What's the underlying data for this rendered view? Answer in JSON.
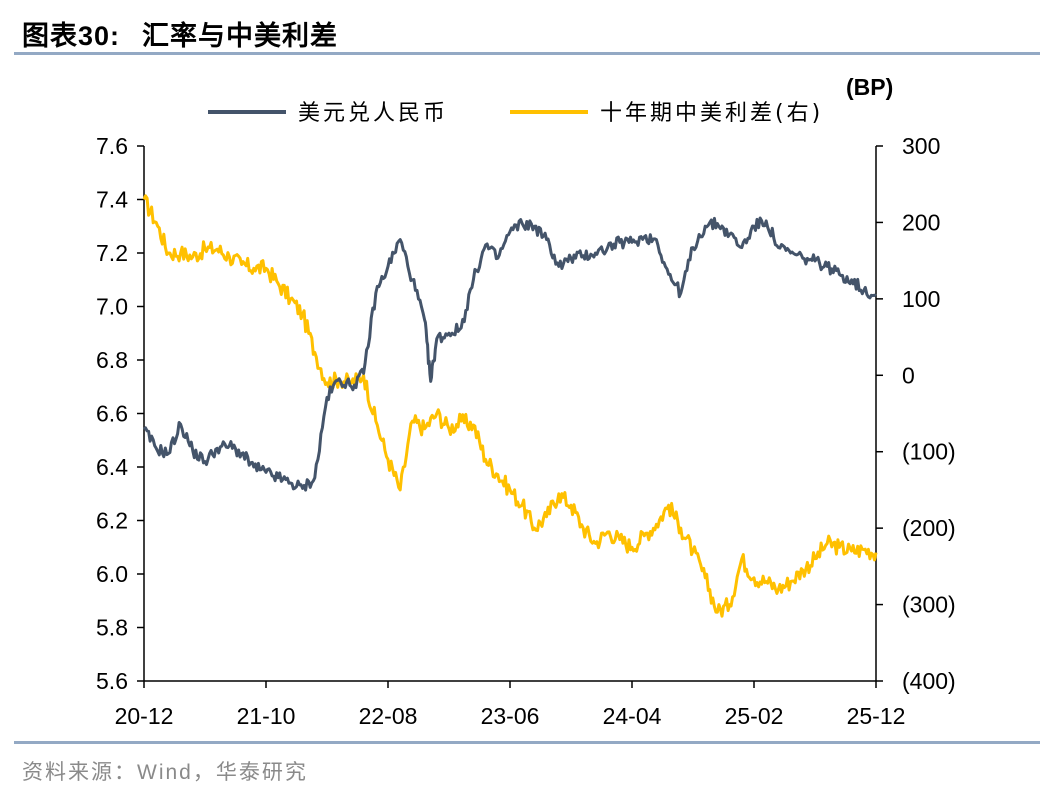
{
  "figure": {
    "label": "图表30:",
    "title": "汇率与中美利差",
    "source": "资料来源：Wind，华泰研究"
  },
  "colors": {
    "usdcny": "#44546a",
    "spread": "#ffc000",
    "rule": "#93a9c4"
  },
  "chart_data": {
    "type": "line",
    "title": "汇率与中美利差",
    "x_ticks": [
      "20-12",
      "21-10",
      "22-08",
      "23-06",
      "24-04",
      "25-02",
      "25-12"
    ],
    "x_tick_index": [
      0,
      10,
      20,
      30,
      40,
      50,
      60
    ],
    "y_left": {
      "min": 5.6,
      "max": 7.6,
      "ticks": [
        "7.6",
        "7.4",
        "7.2",
        "7.0",
        "6.8",
        "6.6",
        "6.4",
        "6.2",
        "6.0",
        "5.8",
        "5.6"
      ]
    },
    "y_right": {
      "unit_label": "(BP)",
      "min": -400,
      "max": 300,
      "ticks": [
        "300",
        "200",
        "100",
        "0",
        "(100)",
        "(200)",
        "(300)",
        "(400)"
      ]
    },
    "x_index_note": "months since 2020-12, estimated monthly values",
    "series": [
      {
        "name": "美元兑人民币",
        "axis": "left",
        "x": [
          0,
          1,
          2,
          3,
          4,
          5,
          6,
          7,
          8,
          9,
          10,
          11,
          12,
          13,
          14,
          15,
          16,
          17,
          18,
          19,
          20,
          21,
          22,
          23,
          23.5,
          24,
          25,
          26,
          27,
          28,
          29,
          30,
          31,
          32,
          33,
          34,
          35,
          36,
          37,
          38,
          39,
          40,
          41,
          42,
          43,
          44,
          45,
          46,
          47,
          48,
          49,
          50,
          51,
          52,
          53,
          54,
          55,
          56,
          57,
          58,
          59,
          60
        ],
        "values": [
          6.54,
          6.47,
          6.45,
          6.56,
          6.46,
          6.42,
          6.47,
          6.48,
          6.45,
          6.4,
          6.38,
          6.36,
          6.34,
          6.32,
          6.36,
          6.66,
          6.73,
          6.7,
          6.75,
          7.05,
          7.15,
          7.25,
          7.1,
          6.95,
          6.72,
          6.88,
          6.9,
          6.92,
          7.1,
          7.23,
          7.18,
          7.28,
          7.31,
          7.3,
          7.25,
          7.15,
          7.18,
          7.19,
          7.2,
          7.22,
          7.24,
          7.24,
          7.26,
          7.25,
          7.12,
          7.05,
          7.22,
          7.3,
          7.31,
          7.27,
          7.22,
          7.3,
          7.32,
          7.22,
          7.2,
          7.18,
          7.17,
          7.15,
          7.12,
          7.1,
          7.06,
          7.04
        ]
      },
      {
        "name": "十年期中美利差(右)",
        "axis": "right",
        "x": [
          0,
          1,
          2,
          3,
          4,
          5,
          6,
          7,
          8,
          9,
          10,
          11,
          12,
          13,
          14,
          15,
          16,
          17,
          18,
          19,
          20,
          21,
          22,
          23,
          24,
          25,
          26,
          27,
          28,
          29,
          30,
          31,
          32,
          33,
          34,
          35,
          36,
          37,
          38,
          39,
          40,
          41,
          42,
          43,
          44,
          45,
          46,
          47,
          48,
          49,
          50,
          51,
          52,
          53,
          54,
          55,
          56,
          57,
          58,
          59,
          60
        ],
        "values": [
          230,
          200,
          160,
          160,
          155,
          165,
          165,
          155,
          145,
          140,
          140,
          120,
          100,
          80,
          30,
          -10,
          -5,
          -10,
          0,
          -60,
          -110,
          -150,
          -60,
          -70,
          -50,
          -70,
          -60,
          -65,
          -110,
          -130,
          -150,
          -170,
          -200,
          -185,
          -155,
          -170,
          -200,
          -220,
          -205,
          -215,
          -225,
          -210,
          -195,
          -170,
          -200,
          -230,
          -265,
          -310,
          -300,
          -240,
          -265,
          -270,
          -280,
          -270,
          -255,
          -240,
          -220,
          -225,
          -230,
          -228,
          -232
        ]
      }
    ]
  }
}
